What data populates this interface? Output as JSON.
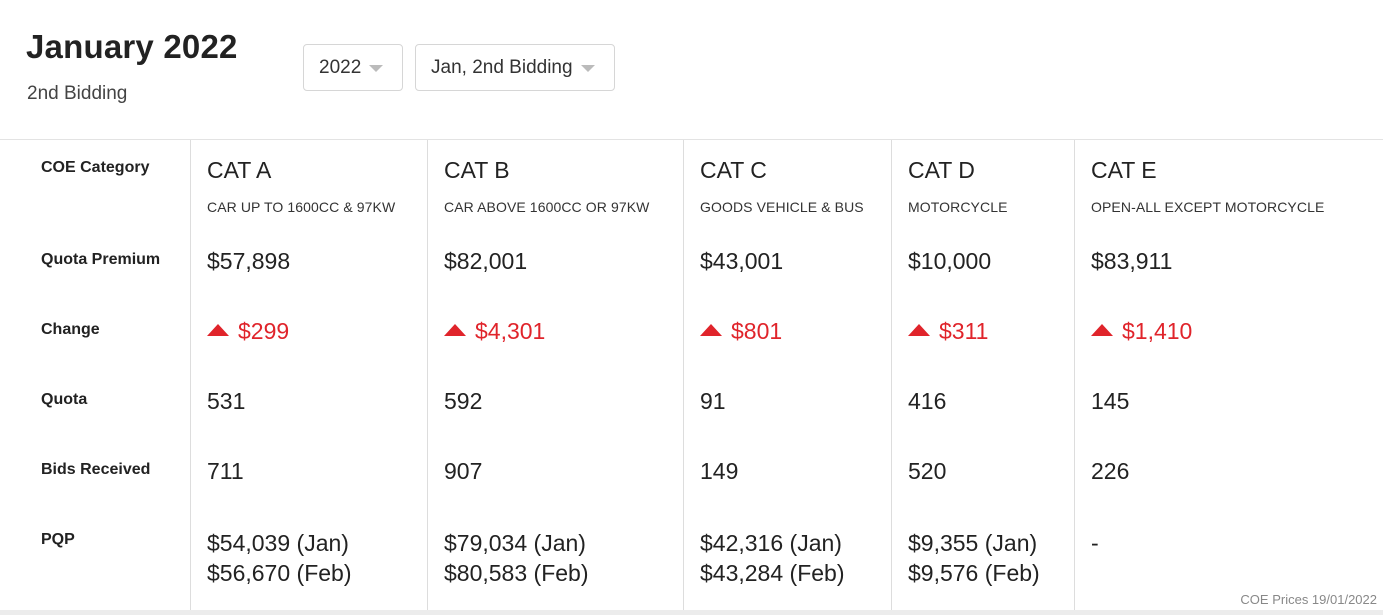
{
  "header": {
    "title": "January 2022",
    "subtitle": "2nd Bidding",
    "year_select": "2022",
    "round_select": "Jan, 2nd Bidding"
  },
  "row_labels": {
    "category": "COE Category",
    "quota_premium": "Quota Premium",
    "change": "Change",
    "quota": "Quota",
    "bids_received": "Bids Received",
    "pqp": "PQP"
  },
  "categories": [
    {
      "cat": "CAT A",
      "desc": "CAR UP TO 1600CC & 97KW",
      "premium": "$57,898",
      "change": "$299",
      "quota": "531",
      "bids": "711",
      "pqp_jan": "$54,039 (Jan)",
      "pqp_feb": "$56,670 (Feb)"
    },
    {
      "cat": "CAT B",
      "desc": "CAR ABOVE 1600CC OR 97KW",
      "premium": "$82,001",
      "change": "$4,301",
      "quota": "592",
      "bids": "907",
      "pqp_jan": "$79,034 (Jan)",
      "pqp_feb": "$80,583 (Feb)"
    },
    {
      "cat": "CAT C",
      "desc": "GOODS VEHICLE & BUS",
      "premium": "$43,001",
      "change": "$801",
      "quota": "91",
      "bids": "149",
      "pqp_jan": "$42,316 (Jan)",
      "pqp_feb": "$43,284 (Feb)"
    },
    {
      "cat": "CAT D",
      "desc": "MOTORCYCLE",
      "premium": "$10,000",
      "change": "$311",
      "quota": "416",
      "bids": "520",
      "pqp_jan": "$9,355 (Jan)",
      "pqp_feb": "$9,576 (Feb)"
    },
    {
      "cat": "CAT E",
      "desc": "OPEN-ALL EXCEPT MOTORCYCLE",
      "premium": "$83,911",
      "change": "$1,410",
      "quota": "145",
      "bids": "226",
      "pqp_jan": "-",
      "pqp_feb": ""
    }
  ],
  "footnote": "COE Prices 19/01/2022",
  "colors": {
    "increase": "#e0242b",
    "divider": "#dddddd"
  },
  "icons": {
    "change_up": "triangle-up-icon",
    "dropdown": "caret-down-icon"
  }
}
